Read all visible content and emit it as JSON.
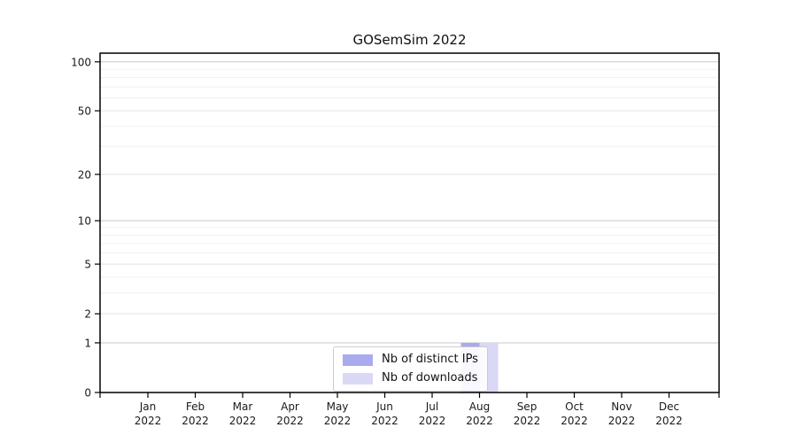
{
  "chart_data": {
    "type": "bar",
    "title": "GOSemSim 2022",
    "categories": [
      "Jan",
      "Feb",
      "Mar",
      "Apr",
      "May",
      "Jun",
      "Jul",
      "Aug",
      "Sep",
      "Oct",
      "Nov",
      "Dec"
    ],
    "year_label": "2022",
    "series": [
      {
        "name": "Nb of distinct IPs",
        "color": "#aaaaee",
        "values": [
          0,
          0,
          0,
          0,
          0,
          0,
          0,
          1,
          0,
          0,
          0,
          0
        ]
      },
      {
        "name": "Nb of downloads",
        "color": "#d9d9f6",
        "values": [
          0,
          0,
          0,
          0,
          0,
          0,
          0,
          1,
          0,
          0,
          0,
          0
        ]
      }
    ],
    "xlabel": "",
    "ylabel": "",
    "y_axis": {
      "scale": "log1p",
      "ticks": [
        0,
        1,
        2,
        5,
        10,
        20,
        50,
        100
      ],
      "minor_ticks": [
        3,
        4,
        6,
        7,
        8,
        9,
        30,
        40,
        60,
        70,
        80,
        90
      ],
      "ylim": [
        0,
        113
      ]
    },
    "grid": {
      "power10_color": "#c8c8c8",
      "major_color": "#e3e3e3",
      "minor_color": "#f1f1f1"
    },
    "axis_color": "#000000",
    "tick_label_color": "#1a1a1a",
    "legend_position": "bottom-center"
  }
}
